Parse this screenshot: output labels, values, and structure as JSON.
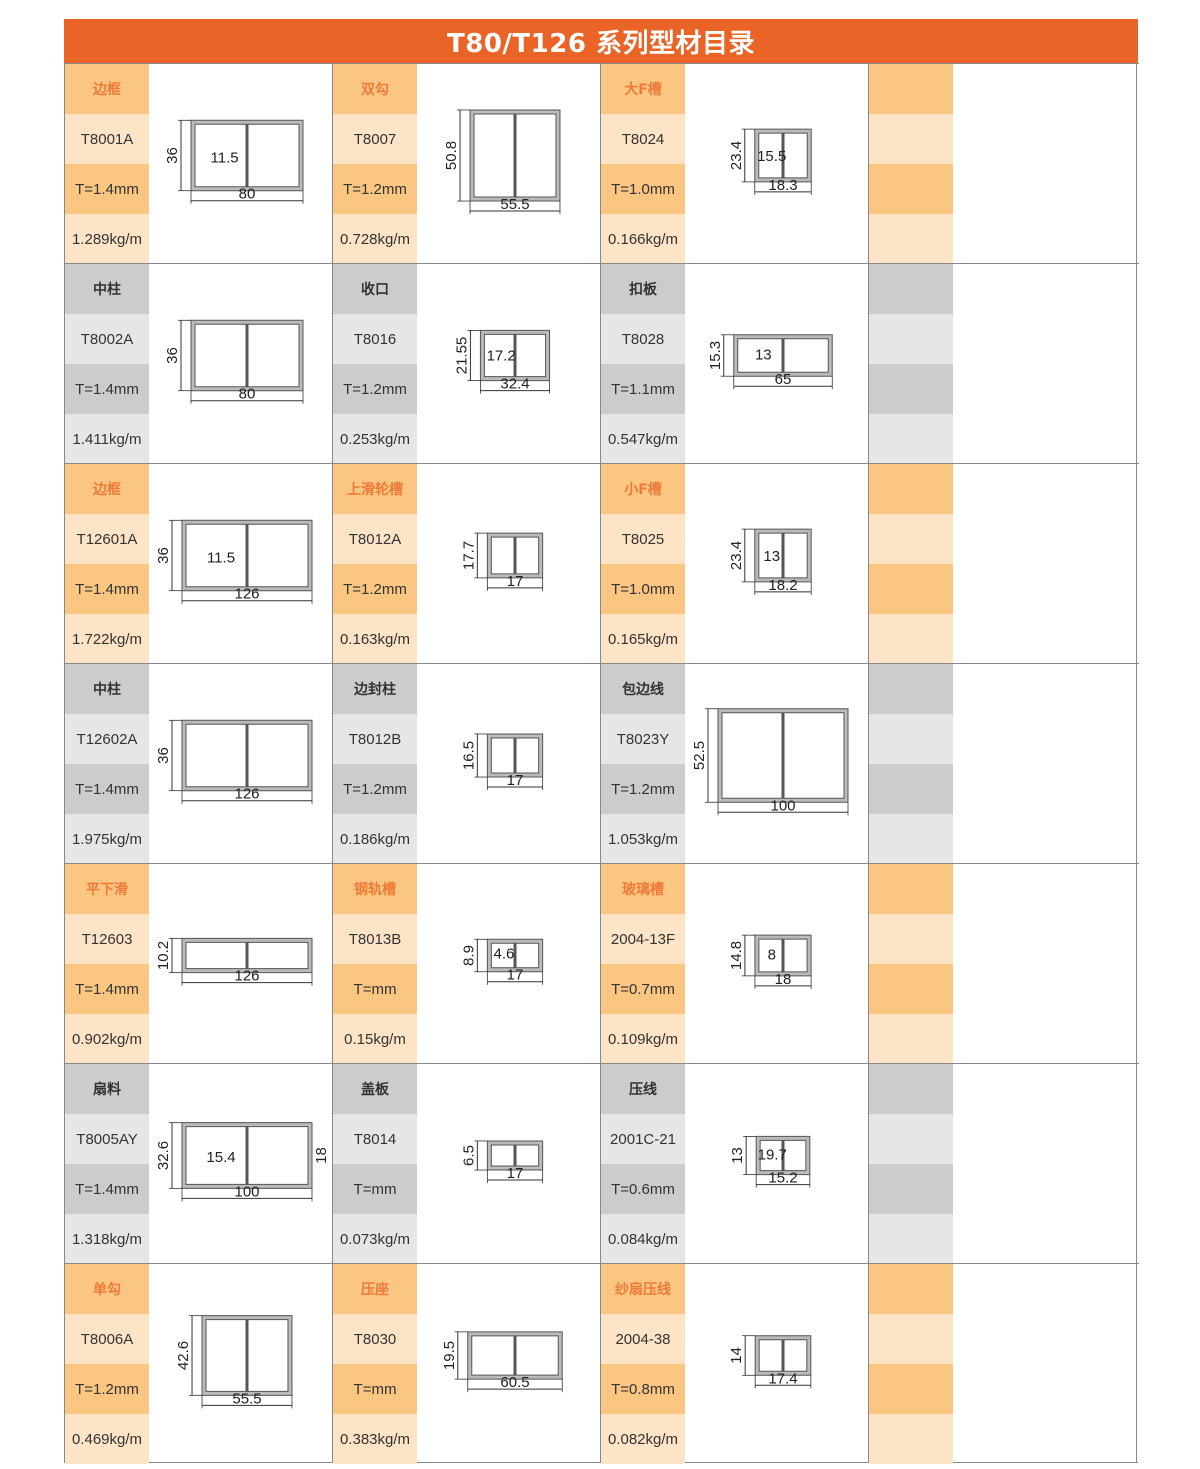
{
  "title": "T80/T126 系列型材目录",
  "colors": {
    "header": "#EB6427",
    "orange_strong": "#FBC681",
    "orange_light": "#FDE4C6",
    "gray_strong": "#CCCCCC",
    "gray_light": "#E6E6E6",
    "name_orange": "#EE7B3A"
  },
  "rows": [
    {
      "theme": "orange",
      "items": [
        {
          "name": "边框",
          "code": "T8001A",
          "thickness": "T=1.4mm",
          "weight": "1.289kg/m",
          "dims": [
            "80",
            "36",
            "11.5"
          ]
        },
        {
          "name": "双勾",
          "code": "T8007",
          "thickness": "T=1.2mm",
          "weight": "0.728kg/m",
          "dims": [
            "55.5",
            "50.8"
          ]
        },
        {
          "name": "大F槽",
          "code": "T8024",
          "thickness": "T=1.0mm",
          "weight": "0.166kg/m",
          "dims": [
            "18.3",
            "23.4",
            "15.5"
          ]
        }
      ]
    },
    {
      "theme": "gray",
      "items": [
        {
          "name": "中柱",
          "code": "T8002A",
          "thickness": "T=1.4mm",
          "weight": "1.411kg/m",
          "dims": [
            "80",
            "36"
          ]
        },
        {
          "name": "收口",
          "code": "T8016",
          "thickness": "T=1.2mm",
          "weight": "0.253kg/m",
          "dims": [
            "32.4",
            "21.55",
            "17.2"
          ]
        },
        {
          "name": "扣板",
          "code": "T8028",
          "thickness": "T=1.1mm",
          "weight": "0.547kg/m",
          "dims": [
            "65",
            "15.3",
            "13"
          ]
        }
      ]
    },
    {
      "theme": "orange",
      "items": [
        {
          "name": "边框",
          "code": "T12601A",
          "thickness": "T=1.4mm",
          "weight": "1.722kg/m",
          "dims": [
            "126",
            "36",
            "11.5"
          ]
        },
        {
          "name": "上滑轮槽",
          "code": "T8012A",
          "thickness": "T=1.2mm",
          "weight": "0.163kg/m",
          "dims": [
            "17",
            "17.7"
          ]
        },
        {
          "name": "小F槽",
          "code": "T8025",
          "thickness": "T=1.0mm",
          "weight": "0.165kg/m",
          "dims": [
            "18.2",
            "23.4",
            "13"
          ]
        }
      ]
    },
    {
      "theme": "gray",
      "items": [
        {
          "name": "中柱",
          "code": "T12602A",
          "thickness": "T=1.4mm",
          "weight": "1.975kg/m",
          "dims": [
            "126",
            "36"
          ]
        },
        {
          "name": "边封柱",
          "code": "T8012B",
          "thickness": "T=1.2mm",
          "weight": "0.186kg/m",
          "dims": [
            "17",
            "16.5"
          ]
        },
        {
          "name": "包边线",
          "code": "T8023Y",
          "thickness": "T=1.2mm",
          "weight": "1.053kg/m",
          "dims": [
            "100",
            "52.5"
          ]
        }
      ]
    },
    {
      "theme": "orange",
      "items": [
        {
          "name": "平下滑",
          "code": "T12603",
          "thickness": "T=1.4mm",
          "weight": "0.902kg/m",
          "dims": [
            "126",
            "10.2"
          ]
        },
        {
          "name": "钢轨槽",
          "code": "T8013B",
          "thickness": "T=mm",
          "weight": "0.15kg/m",
          "dims": [
            "17",
            "8.9",
            "4.6"
          ]
        },
        {
          "name": "玻璃槽",
          "code": "2004-13F",
          "thickness": "T=0.7mm",
          "weight": "0.109kg/m",
          "dims": [
            "18",
            "14.8",
            "8"
          ]
        }
      ]
    },
    {
      "theme": "gray",
      "items": [
        {
          "name": "扇料",
          "code": "T8005AY",
          "thickness": "T=1.4mm",
          "weight": "1.318kg/m",
          "dims": [
            "100",
            "32.6",
            "15.4",
            "18"
          ]
        },
        {
          "name": "盖板",
          "code": "T8014",
          "thickness": "T=mm",
          "weight": "0.073kg/m",
          "dims": [
            "17",
            "6.5"
          ]
        },
        {
          "name": "压线",
          "code": "2001C-21",
          "thickness": "T=0.6mm",
          "weight": "0.084kg/m",
          "dims": [
            "15.2",
            "13",
            "19.7"
          ]
        }
      ]
    },
    {
      "theme": "orange",
      "items": [
        {
          "name": "单勾",
          "code": "T8006A",
          "thickness": "T=1.2mm",
          "weight": "0.469kg/m",
          "dims": [
            "55.5",
            "42.6"
          ]
        },
        {
          "name": "压座",
          "code": "T8030",
          "thickness": "T=mm",
          "weight": "0.383kg/m",
          "dims": [
            "60.5",
            "19.5"
          ]
        },
        {
          "name": "纱扇压线",
          "code": "2004-38",
          "thickness": "T=0.8mm",
          "weight": "0.082kg/m",
          "dims": [
            "17.4",
            "14"
          ]
        }
      ]
    }
  ]
}
